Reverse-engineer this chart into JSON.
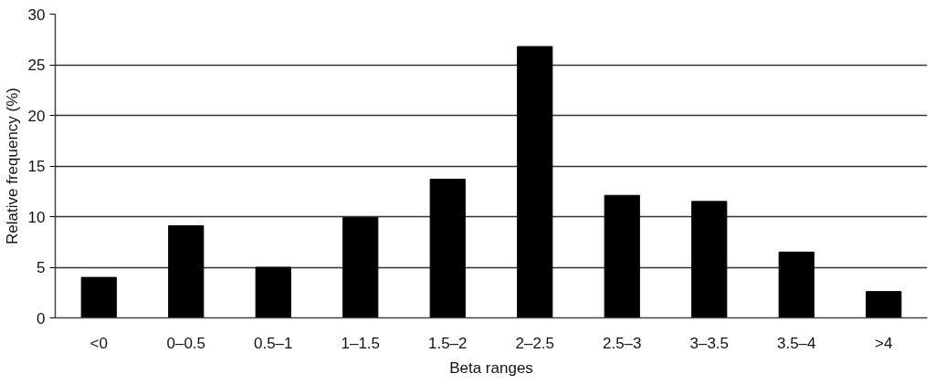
{
  "chart_data": {
    "type": "bar",
    "xlabel": "Beta ranges",
    "ylabel": "Relative frequency (%)",
    "categories": [
      "<0",
      "0–0.5",
      "0.5–1",
      "1–1.5",
      "1.5–2",
      "2–2.5",
      "2.5–3",
      "3–3.5",
      "3.5–4",
      ">4"
    ],
    "values": [
      4.0,
      9.1,
      5.0,
      9.9,
      13.7,
      26.8,
      12.1,
      11.5,
      6.5,
      2.6
    ],
    "color": "#000000",
    "ylim": [
      0,
      30
    ],
    "yticks": [
      0,
      5,
      10,
      15,
      20,
      25,
      30
    ],
    "grid": "y"
  }
}
